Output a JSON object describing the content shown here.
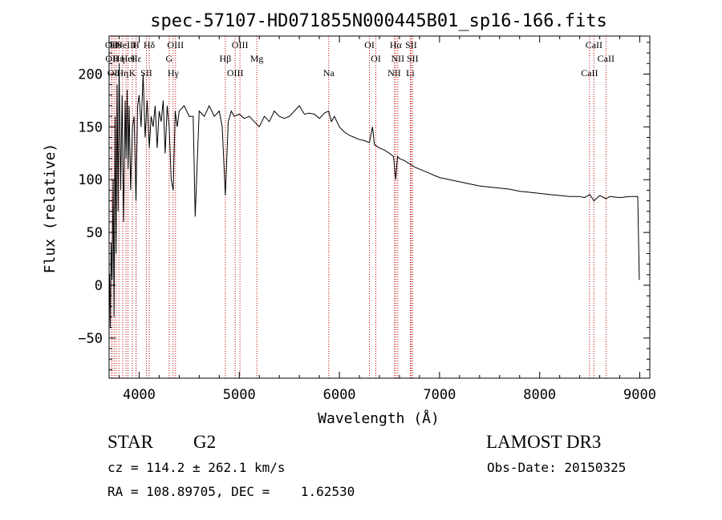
{
  "chart_data": {
    "type": "line",
    "title": "spec-57107-HD071855N000445B01_sp16-166.fits",
    "xlabel": "Wavelength (Å)",
    "ylabel": "Flux (relative)",
    "xlim": [
      3700,
      9100
    ],
    "ylim": [
      -88,
      236
    ],
    "xticks": [
      4000,
      5000,
      6000,
      7000,
      8000,
      9000
    ],
    "yticks": [
      -50,
      0,
      50,
      100,
      150,
      200
    ],
    "grid": false,
    "series": [
      {
        "name": "flux",
        "x": [
          3705,
          3712,
          3720,
          3730,
          3740,
          3750,
          3760,
          3770,
          3780,
          3790,
          3800,
          3815,
          3830,
          3845,
          3860,
          3870,
          3880,
          3890,
          3900,
          3915,
          3933,
          3950,
          3968,
          3985,
          4000,
          4020,
          4040,
          4060,
          4080,
          4101,
          4120,
          4140,
          4160,
          4180,
          4200,
          4220,
          4240,
          4260,
          4280,
          4300,
          4320,
          4340,
          4360,
          4380,
          4400,
          4450,
          4500,
          4540,
          4560,
          4600,
          4650,
          4700,
          4750,
          4800,
          4830,
          4861,
          4890,
          4920,
          4950,
          5000,
          5050,
          5100,
          5150,
          5200,
          5250,
          5300,
          5350,
          5400,
          5450,
          5500,
          5550,
          5600,
          5650,
          5700,
          5750,
          5800,
          5850,
          5893,
          5920,
          5950,
          6000,
          6050,
          6100,
          6150,
          6200,
          6250,
          6300,
          6330,
          6350,
          6400,
          6450,
          6500,
          6540,
          6563,
          6580,
          6600,
          6650,
          6700,
          6750,
          6800,
          6850,
          6900,
          6950,
          7000,
          7100,
          7200,
          7300,
          7400,
          7500,
          7600,
          7700,
          7800,
          7900,
          8000,
          8100,
          8200,
          8300,
          8400,
          8450,
          8500,
          8542,
          8600,
          8662,
          8700,
          8800,
          8900,
          8980,
          8995
        ],
        "y": [
          10,
          -40,
          40,
          5,
          100,
          -30,
          160,
          30,
          190,
          70,
          210,
          90,
          180,
          60,
          175,
          120,
          185,
          110,
          170,
          90,
          150,
          160,
          80,
          170,
          180,
          150,
          200,
          140,
          175,
          130,
          160,
          150,
          170,
          130,
          165,
          155,
          175,
          125,
          170,
          150,
          100,
          90,
          165,
          150,
          165,
          170,
          160,
          160,
          65,
          165,
          160,
          170,
          160,
          165,
          150,
          85,
          155,
          165,
          160,
          162,
          158,
          160,
          155,
          150,
          160,
          155,
          165,
          160,
          158,
          160,
          165,
          170,
          162,
          163,
          162,
          158,
          163,
          165,
          155,
          160,
          150,
          145,
          142,
          140,
          138,
          137,
          135,
          150,
          133,
          130,
          128,
          125,
          122,
          100,
          122,
          120,
          118,
          115,
          112,
          110,
          108,
          106,
          104,
          102,
          100,
          98,
          96,
          94,
          93,
          92,
          91,
          89,
          88,
          87,
          86,
          85,
          84,
          84,
          83,
          86,
          80,
          85,
          82,
          84,
          83,
          84,
          84,
          5
        ]
      }
    ],
    "lines": [
      {
        "wavelength": 3726,
        "label": "OII"
      },
      {
        "wavelength": 3729,
        "label": "OII"
      },
      {
        "wavelength": 3750,
        "label": "OII"
      },
      {
        "wavelength": 3770,
        "label": "Hθ"
      },
      {
        "wavelength": 3798,
        "label": "Hη"
      },
      {
        "wavelength": 3835,
        "label": "Hη"
      },
      {
        "wavelength": 3869,
        "label": "NeIII"
      },
      {
        "wavelength": 3889,
        "label": "HeI"
      },
      {
        "wavelength": 3933,
        "label": "K"
      },
      {
        "wavelength": 3968,
        "label": "H"
      },
      {
        "wavelength": 3970,
        "label": "Hε"
      },
      {
        "wavelength": 4072,
        "label": "SII"
      },
      {
        "wavelength": 4101,
        "label": "Hδ"
      },
      {
        "wavelength": 4300,
        "label": "G"
      },
      {
        "wavelength": 4340,
        "label": "Hγ"
      },
      {
        "wavelength": 4363,
        "label": "OIII"
      },
      {
        "wavelength": 4861,
        "label": "Hβ"
      },
      {
        "wavelength": 4959,
        "label": "OIII"
      },
      {
        "wavelength": 5007,
        "label": "OIII"
      },
      {
        "wavelength": 5175,
        "label": "Mg"
      },
      {
        "wavelength": 5893,
        "label": "Na"
      },
      {
        "wavelength": 6300,
        "label": "OI"
      },
      {
        "wavelength": 6364,
        "label": "OI"
      },
      {
        "wavelength": 6548,
        "label": "NII"
      },
      {
        "wavelength": 6563,
        "label": "Hα"
      },
      {
        "wavelength": 6583,
        "label": "NII"
      },
      {
        "wavelength": 6708,
        "label": "Li"
      },
      {
        "wavelength": 6716,
        "label": "SII"
      },
      {
        "wavelength": 6731,
        "label": "SII"
      },
      {
        "wavelength": 8498,
        "label": "CaII"
      },
      {
        "wavelength": 8542,
        "label": "CaII"
      },
      {
        "wavelength": 8662,
        "label": "CaII"
      }
    ]
  },
  "info": {
    "object": "STAR",
    "subclass": "G2",
    "survey": "LAMOST DR3",
    "redshift": "cz = 114.2 ± 262.1 km/s",
    "obs_date": "Obs-Date: 20150325",
    "coords": "RA = 108.89705, DEC =    1.62530"
  },
  "colors": {
    "spectrum": "#000000",
    "line_markers": "#c00000",
    "background": "#ffffff"
  }
}
